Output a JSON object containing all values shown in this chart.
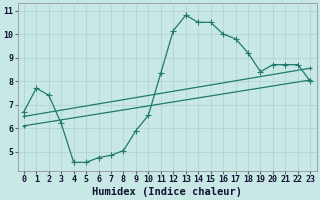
{
  "line1_x": [
    0,
    1,
    2,
    3,
    4,
    5,
    6,
    7,
    8,
    9,
    10,
    11,
    12,
    13,
    14,
    15,
    16,
    17,
    18,
    19,
    20,
    21,
    22,
    23
  ],
  "line1_y": [
    6.7,
    7.7,
    7.4,
    6.2,
    4.55,
    4.55,
    4.75,
    4.85,
    5.05,
    5.9,
    6.55,
    8.35,
    10.15,
    10.8,
    10.5,
    10.5,
    10.0,
    9.8,
    9.2,
    8.4,
    8.7,
    8.7,
    8.7,
    8.0
  ],
  "line2_x": [
    0,
    23
  ],
  "line2_y": [
    6.5,
    8.55
  ],
  "line3_x": [
    0,
    23
  ],
  "line3_y": [
    6.1,
    8.05
  ],
  "line_color": "#1f7a6e",
  "bg_color": "#c8e8e5",
  "grid_color": "#b0d0ce",
  "xlabel": "Humidex (Indice chaleur)",
  "xlim": [
    -0.5,
    23.5
  ],
  "ylim": [
    4.2,
    11.3
  ],
  "xticks": [
    0,
    1,
    2,
    3,
    4,
    5,
    6,
    7,
    8,
    9,
    10,
    11,
    12,
    13,
    14,
    15,
    16,
    17,
    18,
    19,
    20,
    21,
    22,
    23
  ],
  "yticks": [
    5,
    6,
    7,
    8,
    9,
    10,
    11
  ],
  "markersize": 3.0,
  "linewidth": 0.9,
  "xlabel_fontsize": 7.5,
  "tick_fontsize": 6.0
}
